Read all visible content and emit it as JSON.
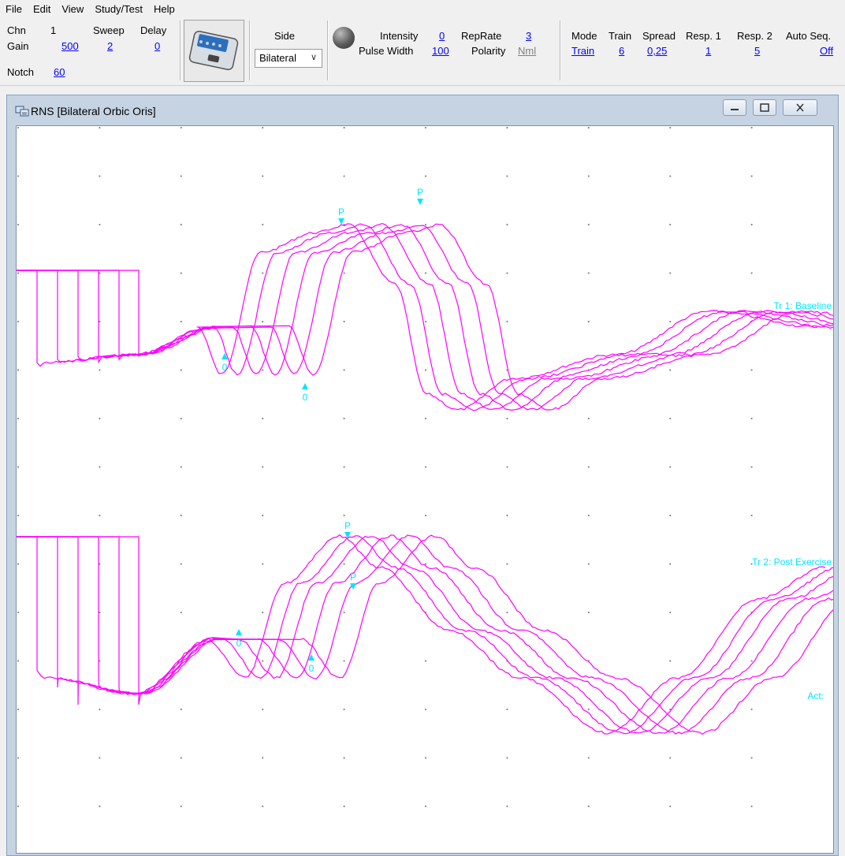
{
  "menu": [
    "File",
    "Edit",
    "View",
    "Study/Test",
    "Help"
  ],
  "toolbar": {
    "chn_label": "Chn",
    "chn_value": "1",
    "sweep_label": "Sweep",
    "sweep_value": "2",
    "delay_label": "Delay",
    "delay_value": "0",
    "gain_label": "Gain",
    "gain_value": "500",
    "notch_label": "Notch",
    "notch_value": "60",
    "side_label": "Side",
    "side_value": "Bilateral",
    "intensity_label": "Intensity",
    "intensity_value": "0",
    "pulse_width_label": "Pulse Width",
    "pulse_width_value": "100",
    "reprate_label": "RepRate",
    "reprate_value": "3",
    "polarity_label": "Polarity",
    "polarity_value": "Nml",
    "mode_label": "Mode",
    "mode_value": "Train",
    "train_label": "Train",
    "train_value": "6",
    "spread_label": "Spread",
    "spread_value": "0,25",
    "resp1_label": "Resp. 1",
    "resp1_value": "1",
    "resp2_label": "Resp. 2",
    "resp2_value": "5",
    "autoseq_label": "Auto Seq.",
    "autoseq_value": "Off"
  },
  "window": {
    "title": "RNS [Bilateral Orbic Oris]",
    "trace1_label": "Tr 1: Baseline",
    "trace2_label": "Tr 2: Post Exercise",
    "act_label": "Act:",
    "markers": {
      "onset": "0",
      "peak": "P"
    }
  },
  "colors": {
    "trace": "#ff00ff",
    "marker": "#00e5ff",
    "grid_dot": "#888888"
  }
}
